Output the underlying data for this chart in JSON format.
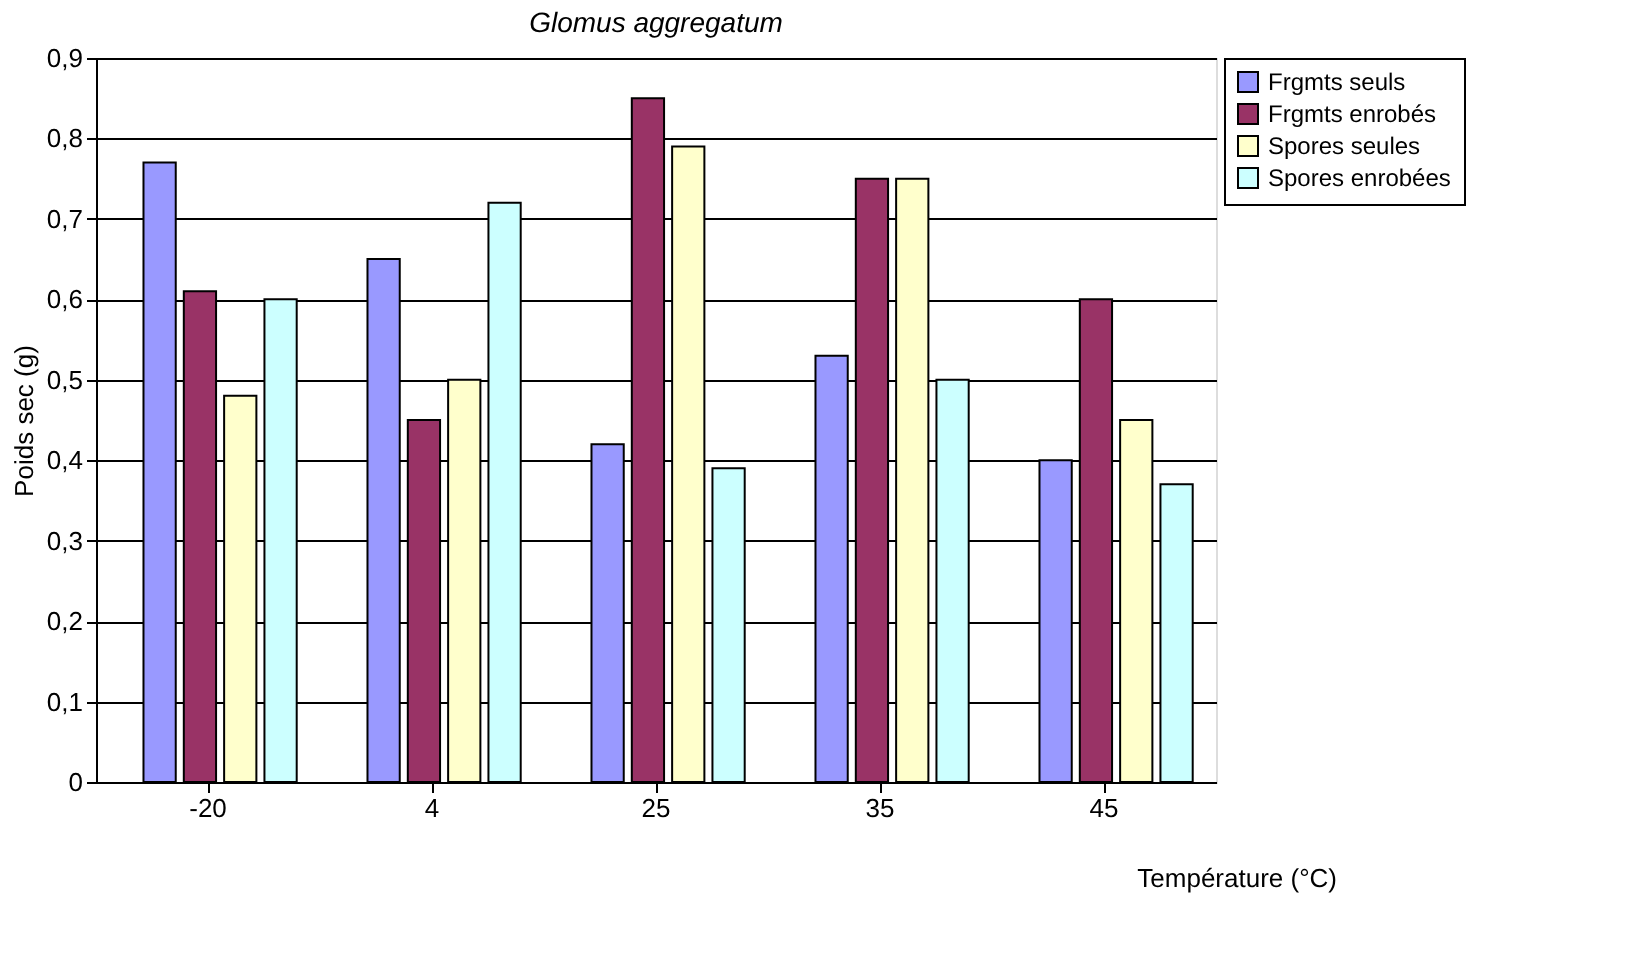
{
  "chart_data": {
    "type": "bar",
    "title": "Glomus aggregatum",
    "xlabel": "Température (°C)",
    "ylabel": "Poids sec (g)",
    "categories": [
      "-20",
      "4",
      "25",
      "35",
      "45"
    ],
    "series": [
      {
        "name": "Frgmts seuls",
        "color": "#9999ff",
        "values": [
          0.77,
          0.65,
          0.42,
          0.53,
          0.4
        ]
      },
      {
        "name": "Frgmts enrobés",
        "color": "#993366",
        "values": [
          0.61,
          0.45,
          0.85,
          0.75,
          0.6
        ]
      },
      {
        "name": "Spores seules",
        "color": "#ffffcc",
        "values": [
          0.48,
          0.5,
          0.79,
          0.75,
          0.45
        ]
      },
      {
        "name": "Spores enrobées",
        "color": "#ccffff",
        "values": [
          0.6,
          0.72,
          0.39,
          0.5,
          0.37
        ]
      }
    ],
    "ylim": [
      0,
      0.9
    ],
    "yticks": [
      {
        "value": 0,
        "label": "0"
      },
      {
        "value": 0.1,
        "label": "0,1"
      },
      {
        "value": 0.2,
        "label": "0,2"
      },
      {
        "value": 0.3,
        "label": "0,3"
      },
      {
        "value": 0.4,
        "label": "0,4"
      },
      {
        "value": 0.5,
        "label": "0,5"
      },
      {
        "value": 0.6,
        "label": "0,6"
      },
      {
        "value": 0.7,
        "label": "0,7"
      },
      {
        "value": 0.8,
        "label": "0,8"
      },
      {
        "value": 0.9,
        "label": "0,9"
      }
    ],
    "grid": "y",
    "legend": "top right"
  }
}
